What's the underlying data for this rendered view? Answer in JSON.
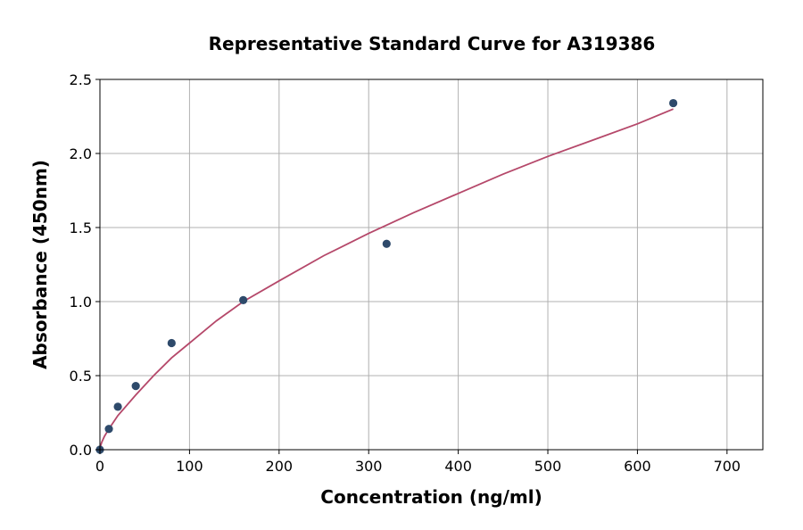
{
  "chart_data": {
    "type": "scatter",
    "title": "Representative Standard Curve for A319386",
    "xlabel": "Concentration (ng/ml)",
    "ylabel": "Absorbance (450nm)",
    "xlim": [
      0,
      740
    ],
    "ylim": [
      0,
      2.5
    ],
    "xticks": [
      0,
      100,
      200,
      300,
      400,
      500,
      600,
      700
    ],
    "yticks": [
      0.0,
      0.5,
      1.0,
      1.5,
      2.0,
      2.5
    ],
    "xtick_labels": [
      "0",
      "100",
      "200",
      "300",
      "400",
      "500",
      "600",
      "700"
    ],
    "ytick_labels": [
      "0.0",
      "0.5",
      "1.0",
      "1.5",
      "2.0",
      "2.5"
    ],
    "grid": true,
    "series": [
      {
        "type": "scatter",
        "color": "#2e4a6b",
        "x": [
          0,
          10,
          20,
          40,
          80,
          160,
          320,
          640
        ],
        "y": [
          0.0,
          0.14,
          0.29,
          0.43,
          0.72,
          1.01,
          1.39,
          2.34
        ]
      },
      {
        "type": "line",
        "color": "#b5486a",
        "x": [
          0,
          1,
          2,
          5,
          10,
          20,
          40,
          60,
          80,
          100,
          130,
          160,
          200,
          250,
          300,
          350,
          400,
          450,
          500,
          550,
          600,
          640
        ],
        "y": [
          0.0,
          0.03,
          0.05,
          0.09,
          0.14,
          0.23,
          0.37,
          0.5,
          0.62,
          0.72,
          0.87,
          1.0,
          1.14,
          1.31,
          1.46,
          1.6,
          1.73,
          1.86,
          1.98,
          2.09,
          2.2,
          2.3
        ]
      }
    ]
  }
}
